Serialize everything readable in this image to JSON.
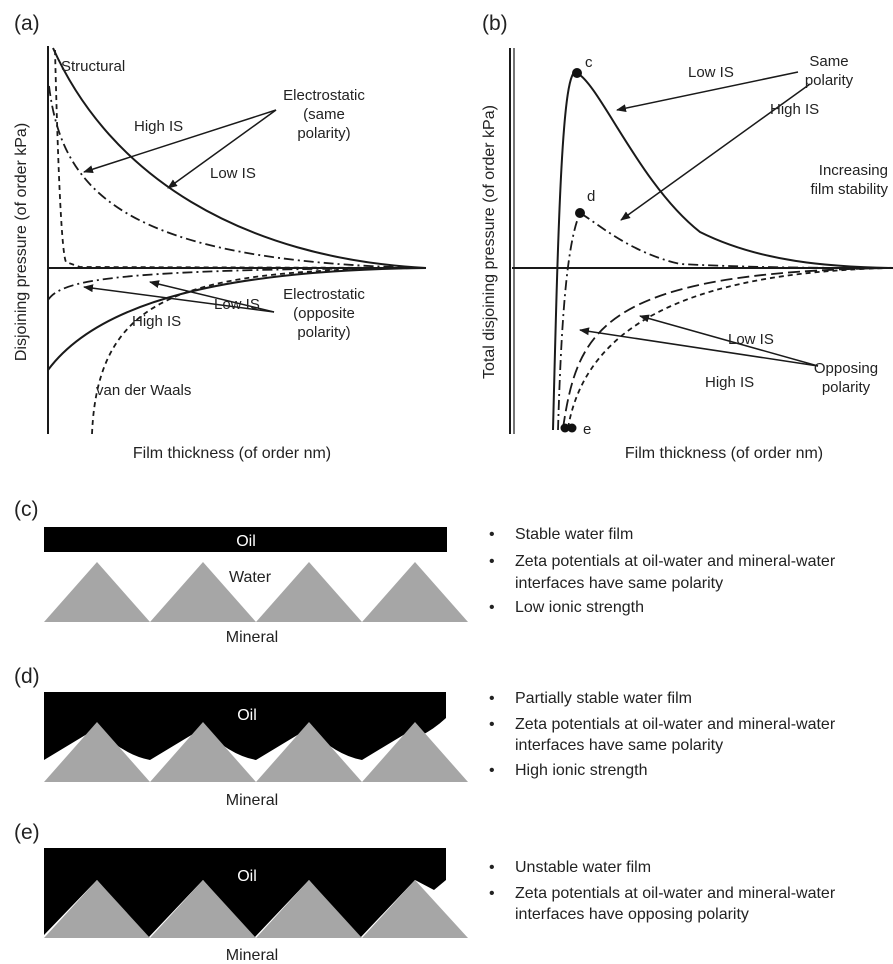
{
  "panel_a": {
    "label": "(a)",
    "y_axis_label": "Disjoining pressure (of order kPa)",
    "x_axis_label": "Film thickness (of order nm)",
    "annotations": {
      "structural": "Structural",
      "electrostatic_same_1": "Electrostatic",
      "electrostatic_same_2": "(same",
      "electrostatic_same_3": "polarity)",
      "high_is_top": "High IS",
      "low_is_top": "Low IS",
      "low_is_bottom": "Low IS",
      "high_is_bottom": "High IS",
      "electrostatic_opp_1": "Electrostatic",
      "electrostatic_opp_2": "(opposite",
      "electrostatic_opp_3": "polarity)",
      "van_der_waals": "van der Waals"
    }
  },
  "panel_b": {
    "label": "(b)",
    "y_axis_label": "Total disjoining pressure (of order kPa)",
    "x_axis_label": "Film thickness (of order nm)",
    "annotations": {
      "point_c": "c",
      "point_d": "d",
      "point_e": "e",
      "low_is_top": "Low IS",
      "high_is_top": "High IS",
      "same_polarity_1": "Same",
      "same_polarity_2": "polarity",
      "increasing_1": "Increasing",
      "increasing_2": "film stability",
      "low_is_bottom": "Low IS",
      "high_is_bottom": "High IS",
      "opposing_1": "Opposing",
      "opposing_2": "polarity"
    }
  },
  "panel_c": {
    "label": "(c)",
    "oil": "Oil",
    "water": "Water",
    "mineral": "Mineral",
    "bullets": [
      "Stable water film",
      "Zeta potentials at oil-water and mineral-water",
      "interfaces have same polarity",
      "Low ionic strength"
    ]
  },
  "panel_d": {
    "label": "(d)",
    "oil": "Oil",
    "mineral": "Mineral",
    "bullets": [
      "Partially stable water film",
      "Zeta potentials at oil-water and mineral-water",
      "interfaces have same polarity",
      "High ionic strength"
    ]
  },
  "panel_e": {
    "label": "(e)",
    "oil": "Oil",
    "mineral": "Mineral",
    "bullets": [
      "Unstable water film",
      "Zeta potentials at oil-water and mineral-water",
      "interfaces have opposing polarity"
    ]
  },
  "colors": {
    "oil": "#000000",
    "mineral": "#a6a6a6",
    "line": "#1a1a1a",
    "text": "#222222"
  }
}
